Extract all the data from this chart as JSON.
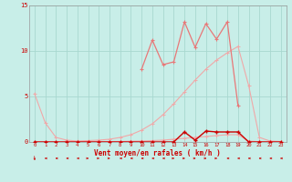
{
  "x": [
    0,
    1,
    2,
    3,
    4,
    5,
    6,
    7,
    8,
    9,
    10,
    11,
    12,
    13,
    14,
    15,
    16,
    17,
    18,
    19,
    20,
    21,
    22,
    23
  ],
  "line_smooth": [
    5.3,
    2.1,
    0.5,
    0.2,
    0.1,
    0.15,
    0.2,
    0.3,
    0.5,
    0.8,
    1.3,
    2.0,
    3.0,
    4.2,
    5.5,
    6.8,
    8.0,
    9.0,
    9.8,
    10.5,
    6.2,
    0.5,
    0.1,
    0.05
  ],
  "line_low": [
    0.0,
    0.0,
    0.0,
    0.0,
    0.0,
    0.0,
    0.0,
    0.05,
    0.05,
    0.08,
    0.1,
    0.15,
    0.2,
    0.3,
    0.4,
    0.5,
    0.6,
    0.7,
    0.8,
    0.8,
    0.1,
    0.02,
    0.0,
    0.0
  ],
  "line_mid": [
    0.0,
    0.0,
    0.0,
    0.0,
    0.0,
    0.0,
    0.0,
    0.0,
    0.0,
    0.0,
    0.0,
    0.0,
    0.0,
    0.0,
    1.1,
    0.2,
    1.2,
    1.1,
    1.1,
    1.1,
    0.0,
    0.0,
    0.0,
    0.0
  ],
  "line_spiky": [
    null,
    null,
    null,
    null,
    null,
    null,
    null,
    null,
    null,
    null,
    8.0,
    11.2,
    8.5,
    8.8,
    13.2,
    10.4,
    13.0,
    11.3,
    13.2,
    4.0,
    null,
    null,
    null,
    null
  ],
  "bg_color": "#c8eee8",
  "grid_color": "#a8d8d0",
  "color_light": "#f0a8a8",
  "color_mid": "#e87878",
  "color_dark": "#cc0000",
  "xlabel": "Vent moyen/en rafales ( km/h )",
  "ylim": [
    0,
    15
  ],
  "xlim": [
    -0.5,
    23.5
  ],
  "yticks": [
    0,
    5,
    10,
    15
  ],
  "xticks": [
    0,
    1,
    2,
    3,
    4,
    5,
    6,
    7,
    8,
    9,
    10,
    11,
    12,
    13,
    14,
    15,
    16,
    17,
    18,
    19,
    20,
    21,
    22,
    23
  ]
}
